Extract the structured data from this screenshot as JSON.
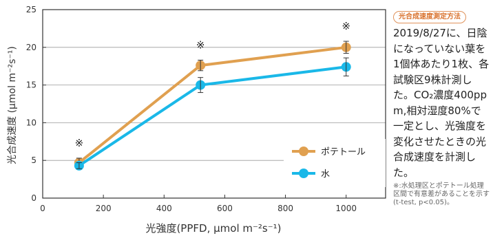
{
  "chart_data": {
    "type": "line",
    "x": [
      120,
      520,
      1000
    ],
    "series": [
      {
        "name": "ポテトール",
        "color": "#e0a050",
        "values": [
          4.7,
          17.6,
          20.0
        ],
        "errors": [
          0.6,
          0.7,
          0.8
        ]
      },
      {
        "name": "水",
        "color": "#1ab8e8",
        "values": [
          4.3,
          15.0,
          17.4
        ],
        "errors": [
          0.4,
          1.0,
          1.2
        ]
      }
    ],
    "significance_marks": [
      {
        "x": 120,
        "label": "※"
      },
      {
        "x": 520,
        "label": "※"
      },
      {
        "x": 1000,
        "label": "※"
      }
    ],
    "xlabel": "光強度(PPFD, µmol m⁻²s⁻¹)",
    "ylabel": "光合成速度 (µmol m⁻²s⁻¹)",
    "xlim": [
      0,
      1130
    ],
    "ylim": [
      0,
      25
    ],
    "xticks": [
      0,
      200,
      400,
      600,
      800,
      1000
    ],
    "yticks": [
      0,
      5,
      10,
      15,
      20,
      25
    ],
    "grid": "horizontal",
    "legend_position": "bottom-right"
  },
  "sidebar": {
    "title": "光合成速度測定方法",
    "body": "2019/8/27に、日陰になっていない葉を1個体あたり1枚、各試験区9株計測した。CO₂濃度400ppm,相対湿度80%で一定とし、光強度を変化させたときの光合成速度を計測した。",
    "note": "※:水処理区とポテトール処理区間で有意差があることを示す(t-test, p<0.05)。"
  }
}
